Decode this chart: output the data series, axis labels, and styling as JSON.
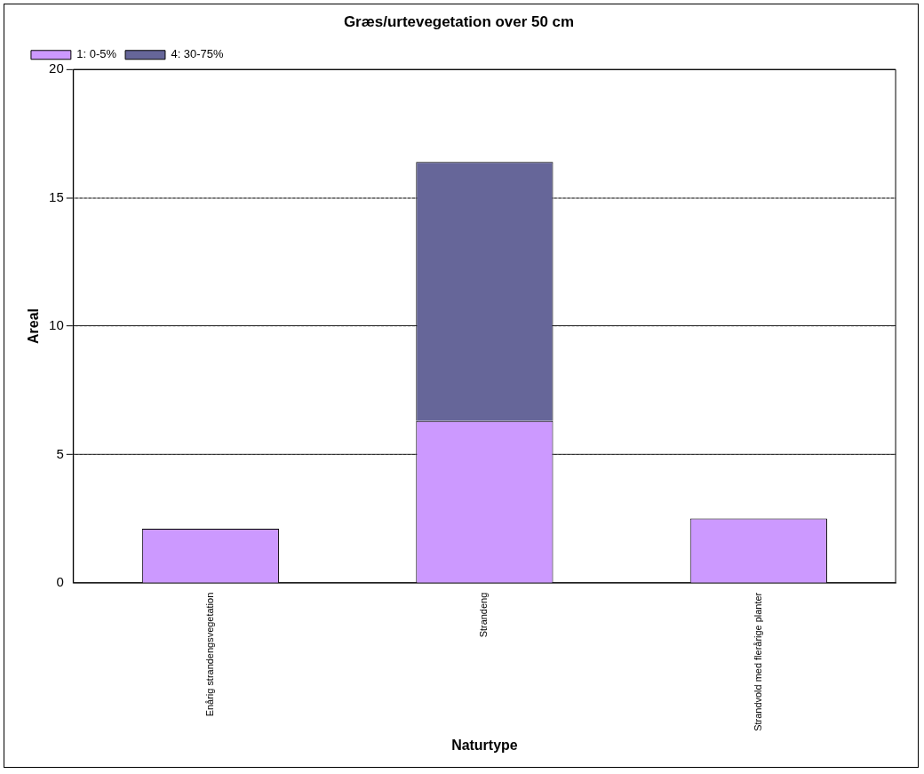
{
  "chart_data": {
    "type": "bar",
    "title": "Græs/urtevegetation over 50 cm",
    "xlabel": "Naturtype",
    "ylabel": "Areal",
    "categories": [
      "Enårig strandengsvegetation",
      "Strandeng",
      "Strandvold med flerårige planter"
    ],
    "stacked": true,
    "series": [
      {
        "name": "1: 0-5%",
        "color": "#cc99ff",
        "values": [
          2.1,
          6.3,
          2.5
        ]
      },
      {
        "name": "4: 30-75%",
        "color": "#666699",
        "values": [
          null,
          10.1,
          null
        ]
      }
    ],
    "ylim": [
      0,
      20
    ],
    "yticks": [
      0,
      5,
      10,
      15,
      20
    ],
    "grid": "y",
    "legend": "top left"
  }
}
